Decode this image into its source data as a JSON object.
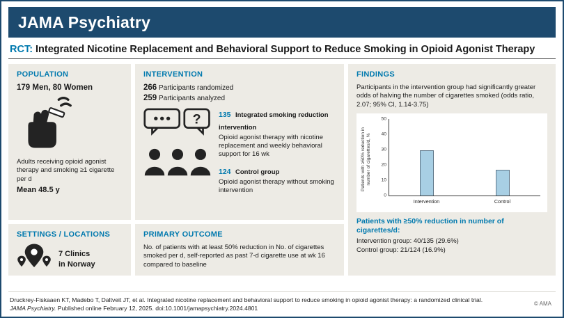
{
  "theme": {
    "navy": "#1d4a6e",
    "teal": "#0079ae",
    "panel_bg": "#edebe5",
    "bar_fill": "#a8cfe4"
  },
  "header": {
    "title": "JAMA Psychiatry"
  },
  "title": {
    "tag": "RCT:",
    "text": "Integrated Nicotine Replacement and Behavioral Support to Reduce Smoking in Opioid Agonist Therapy"
  },
  "population": {
    "heading": "POPULATION",
    "counts": "179 Men, 80 Women",
    "description": "Adults receiving opioid agonist therapy and smoking ≥1 cigarette per d",
    "mean": "Mean 48.5 y"
  },
  "intervention": {
    "heading": "INTERVENTION",
    "randomized_n": "266",
    "randomized_label": "Participants randomized",
    "analyzed_n": "259",
    "analyzed_label": "Participants analyzed",
    "groups": [
      {
        "n": "135",
        "name": "Integrated smoking reduction intervention",
        "description": "Opioid agonist therapy with nicotine replacement and weekly behavioral support for 16 wk"
      },
      {
        "n": "124",
        "name": "Control group",
        "description": "Opioid agonist therapy without smoking intervention"
      }
    ]
  },
  "findings": {
    "heading": "FINDINGS",
    "summary": "Participants in the intervention group had significantly greater odds of halving the number of cigarettes smoked (odds ratio, 2.07; 95% CI, 1.14-3.75)",
    "result_heading": "Patients with ≥50% reduction in number of cigarettes/d:",
    "result_lines": [
      "Intervention group: 40/135 (29.6%)",
      "Control group: 21/124 (16.9%)"
    ]
  },
  "chart_data": {
    "type": "bar",
    "categories": [
      "Intervention",
      "Control"
    ],
    "values": [
      29.6,
      16.9
    ],
    "title": "",
    "xlabel": "",
    "ylabel": "Patients with ≥50% reduction in number of cigarettes/d, %",
    "ylim": [
      0,
      50
    ],
    "yticks": [
      0,
      10,
      20,
      30,
      40,
      50
    ],
    "grid": false,
    "legend": "none",
    "bar_color": "#a8cfe4"
  },
  "settings": {
    "heading": "SETTINGS / LOCATIONS",
    "line1": "7 Clinics",
    "line2": "in Norway"
  },
  "primary_outcome": {
    "heading": "PRIMARY OUTCOME",
    "text": "No. of patients with at least 50% reduction in No. of cigarettes smoked per d, self-reported as past 7-d cigarette use at wk 16 compared to baseline"
  },
  "footer": {
    "citation_line1": "Druckrey-Fiskaaen KT, Madebo T, Daltveit JT, et al. Integrated nicotine replacement and behavioral support to reduce smoking in opioid agonist therapy: a randomized clinical trial.",
    "citation_journal": "JAMA Psychiatry.",
    "citation_line2": " Published online February 12, 2025. doi:10.1001/jamapsychiatry.2024.4801",
    "copyright": "© AMA"
  }
}
